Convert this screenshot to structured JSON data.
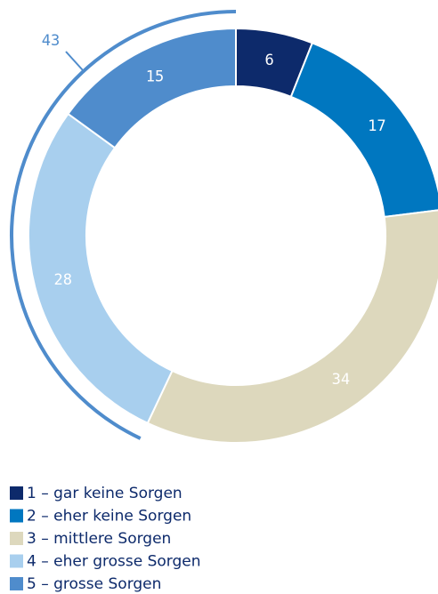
{
  "chart_data": {
    "type": "donut",
    "categories": [
      "1 – gar keine Sorgen",
      "2 – eher keine Sorgen",
      "3 – mittlere Sorgen",
      "4 – eher grosse Sorgen",
      "5 – grosse Sorgen"
    ],
    "values": [
      6,
      17,
      34,
      28,
      15
    ],
    "colors": [
      "#0d2a6b",
      "#0077c0",
      "#ddd8bd",
      "#a8cfee",
      "#4f8ccc"
    ],
    "label_colors": [
      "#ffffff",
      "#ffffff",
      "#ffffff",
      "#ffffff",
      "#ffffff"
    ],
    "annotation": {
      "value": 43,
      "label": "43",
      "color": "#4f8ccc"
    }
  }
}
